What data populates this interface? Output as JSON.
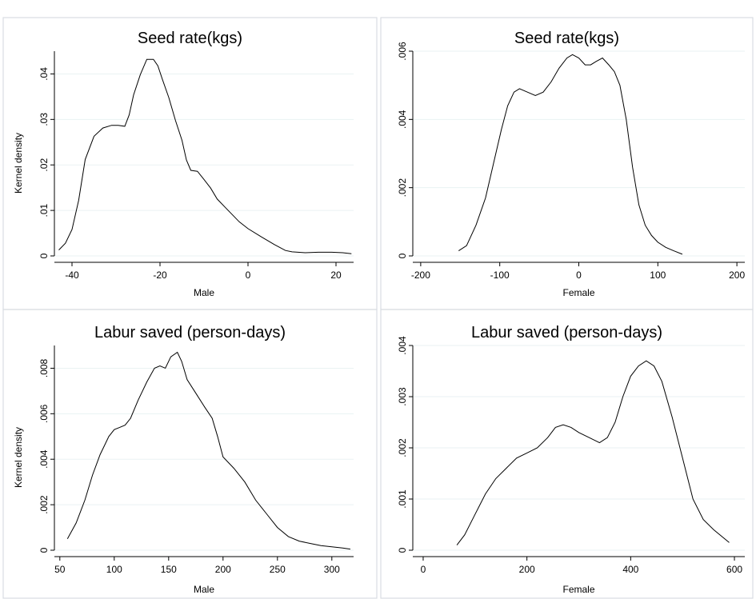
{
  "chart_data": [
    {
      "type": "line",
      "title": "Seed rate(kgs)",
      "xlabel": "Male",
      "ylabel": "Kernel density",
      "xlim": [
        -44,
        24
      ],
      "ylim": [
        0,
        0.045
      ],
      "xticks": [
        -40,
        -20,
        0,
        20
      ],
      "xtick_labels": [
        "-40",
        "-20",
        "0",
        "20"
      ],
      "yticks": [
        0,
        0.01,
        0.02,
        0.03,
        0.04
      ],
      "ytick_labels": [
        "0",
        ".01",
        ".02",
        ".03",
        ".04"
      ],
      "grid": true,
      "x": [
        -43,
        -41.5,
        -40,
        -38.5,
        -37,
        -35,
        -33,
        -31,
        -29.5,
        -28,
        -27,
        -26,
        -24.5,
        -23,
        -21.5,
        -20.5,
        -19.5,
        -18,
        -16.5,
        -15,
        -14,
        -13,
        -11.5,
        -10,
        -8.5,
        -7,
        -5,
        -2,
        0,
        3,
        6,
        8.5,
        10,
        13,
        16,
        19,
        21.5,
        23.5
      ],
      "y": [
        0.0013,
        0.0028,
        0.0058,
        0.0122,
        0.0212,
        0.0263,
        0.0281,
        0.0287,
        0.0287,
        0.0285,
        0.031,
        0.0354,
        0.0398,
        0.0432,
        0.0432,
        0.0418,
        0.0389,
        0.0348,
        0.0298,
        0.0254,
        0.0211,
        0.0188,
        0.0186,
        0.0168,
        0.0149,
        0.0125,
        0.0105,
        0.0075,
        0.006,
        0.0042,
        0.0025,
        0.0012,
        0.0009,
        0.0007,
        0.0008,
        0.0008,
        0.0007,
        0.0005
      ]
    },
    {
      "type": "line",
      "title": "Seed rate(kgs)",
      "xlabel": "Female",
      "ylabel": "",
      "xlim": [
        -210,
        210
      ],
      "ylim": [
        0,
        0.006
      ],
      "xticks": [
        -200,
        -100,
        0,
        100,
        200
      ],
      "xtick_labels": [
        "-200",
        "-100",
        "0",
        "100",
        "200"
      ],
      "yticks": [
        0,
        0.002,
        0.004,
        0.006
      ],
      "ytick_labels": [
        "0",
        ".002",
        ".004",
        ".006"
      ],
      "grid": true,
      "x": [
        -152,
        -142,
        -130,
        -118,
        -108,
        -98,
        -90,
        -82,
        -75,
        -65,
        -55,
        -45,
        -35,
        -25,
        -15,
        -8,
        0,
        8,
        15,
        22,
        30,
        38,
        45,
        52,
        60,
        68,
        76,
        84,
        92,
        100,
        110,
        120,
        131
      ],
      "y": [
        0.00015,
        0.0003,
        0.0009,
        0.0017,
        0.0027,
        0.0037,
        0.0044,
        0.0048,
        0.0049,
        0.0048,
        0.0047,
        0.0048,
        0.0051,
        0.0055,
        0.0058,
        0.0059,
        0.0058,
        0.0056,
        0.0056,
        0.0057,
        0.0058,
        0.0056,
        0.0054,
        0.005,
        0.004,
        0.0026,
        0.0015,
        0.0009,
        0.0006,
        0.0004,
        0.00025,
        0.00015,
        5e-05
      ]
    },
    {
      "type": "line",
      "title": "Labur saved (person-days)",
      "xlabel": "Male",
      "ylabel": "Kernel density",
      "xlim": [
        45,
        320
      ],
      "ylim": [
        0,
        0.009
      ],
      "xticks": [
        50,
        100,
        150,
        200,
        250,
        300
      ],
      "xtick_labels": [
        "50",
        "100",
        "150",
        "200",
        "250",
        "300"
      ],
      "yticks": [
        0,
        0.002,
        0.004,
        0.006,
        0.008
      ],
      "ytick_labels": [
        "0",
        ".002",
        ".004",
        ".006",
        ".008"
      ],
      "grid": true,
      "x": [
        57,
        65,
        73,
        80,
        87,
        95,
        100,
        105,
        110,
        115,
        122,
        130,
        137,
        142,
        147,
        152,
        158,
        162,
        167,
        175,
        183,
        190,
        195,
        200,
        210,
        220,
        230,
        240,
        250,
        260,
        270,
        280,
        290,
        300,
        310,
        317
      ],
      "y": [
        0.0005,
        0.0012,
        0.0022,
        0.0033,
        0.0042,
        0.005,
        0.0053,
        0.0054,
        0.0055,
        0.0058,
        0.0066,
        0.0074,
        0.008,
        0.0081,
        0.008,
        0.0085,
        0.0087,
        0.0083,
        0.0075,
        0.0069,
        0.0063,
        0.0058,
        0.005,
        0.0041,
        0.0036,
        0.003,
        0.0022,
        0.0016,
        0.001,
        0.0006,
        0.0004,
        0.0003,
        0.0002,
        0.00015,
        0.0001,
        5e-05
      ]
    },
    {
      "type": "line",
      "title": "Labur saved (person-days)",
      "xlabel": "Female",
      "ylabel": "",
      "xlim": [
        -20,
        620
      ],
      "ylim": [
        0,
        0.004
      ],
      "xticks": [
        0,
        200,
        400,
        600
      ],
      "xtick_labels": [
        "0",
        "200",
        "400",
        "600"
      ],
      "yticks": [
        0,
        0.001,
        0.002,
        0.003,
        0.004
      ],
      "ytick_labels": [
        "0",
        ".001",
        ".002",
        ".003",
        ".004"
      ],
      "grid": true,
      "x": [
        65,
        80,
        100,
        120,
        140,
        160,
        180,
        200,
        220,
        240,
        255,
        270,
        285,
        300,
        320,
        340,
        355,
        370,
        385,
        400,
        415,
        430,
        445,
        460,
        480,
        500,
        520,
        540,
        560,
        590
      ],
      "y": [
        0.0001,
        0.0003,
        0.0007,
        0.0011,
        0.0014,
        0.0016,
        0.0018,
        0.0019,
        0.002,
        0.0022,
        0.0024,
        0.00245,
        0.0024,
        0.0023,
        0.0022,
        0.0021,
        0.0022,
        0.0025,
        0.003,
        0.0034,
        0.0036,
        0.0037,
        0.0036,
        0.0033,
        0.0026,
        0.0018,
        0.001,
        0.0006,
        0.0004,
        0.00015
      ]
    }
  ]
}
